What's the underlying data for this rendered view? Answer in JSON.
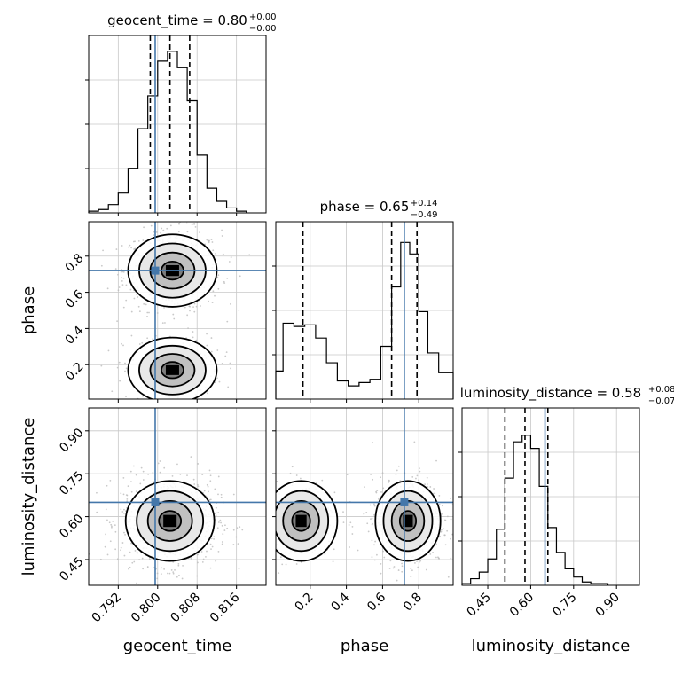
{
  "chart_data": {
    "type": "corner",
    "parameters": [
      {
        "name": "geocent_time",
        "xlabel": "geocent_time",
        "title_prefix": "geocent_time = 0.80",
        "title_sup": "+0.00",
        "title_sub": "−0.00",
        "ticks": [
          "0.792",
          "0.800",
          "0.808",
          "0.816"
        ],
        "range": [
          0.786,
          0.822
        ],
        "truth": 0.7995,
        "quantiles": [
          0.7985,
          0.8025,
          0.8065
        ],
        "hist_bins": [
          0.786,
          0.788,
          0.79,
          0.792,
          0.794,
          0.796,
          0.798,
          0.8,
          0.802,
          0.804,
          0.806,
          0.808,
          0.81,
          0.812,
          0.814,
          0.816,
          0.818
        ],
        "hist_counts": [
          0.01,
          0.02,
          0.05,
          0.12,
          0.27,
          0.51,
          0.71,
          0.92,
          0.98,
          0.88,
          0.68,
          0.35,
          0.15,
          0.07,
          0.03,
          0.01
        ]
      },
      {
        "name": "phase",
        "xlabel": "phase",
        "ylabel": "phase",
        "title_prefix": "phase = 0.65",
        "title_sup": "+0.14",
        "title_sub": "−0.49",
        "ticks": [
          "0.2",
          "0.4",
          "0.6",
          "0.8"
        ],
        "range": [
          0.01,
          0.99
        ],
        "truth": 0.72,
        "quantiles": [
          0.16,
          0.65,
          0.79
        ],
        "hist_bins": [
          0.01,
          0.05,
          0.11,
          0.17,
          0.23,
          0.29,
          0.35,
          0.41,
          0.47,
          0.53,
          0.59,
          0.65,
          0.7,
          0.75,
          0.8,
          0.85,
          0.91,
          0.99
        ],
        "hist_counts": [
          0.17,
          0.46,
          0.44,
          0.45,
          0.37,
          0.22,
          0.11,
          0.08,
          0.1,
          0.12,
          0.32,
          0.68,
          0.95,
          0.88,
          0.53,
          0.28,
          0.16
        ]
      },
      {
        "name": "luminosity_distance",
        "xlabel": "luminosity_distance",
        "ylabel": "luminosity_distance",
        "title_prefix": "luminosity_distance = 0.58",
        "title_sup": "+0.08",
        "title_sub": "−0.07",
        "ticks": [
          "0.45",
          "0.60",
          "0.75",
          "0.90"
        ],
        "range": [
          0.36,
          0.98
        ],
        "truth": 0.65,
        "quantiles": [
          0.51,
          0.58,
          0.66
        ],
        "hist_bins": [
          0.36,
          0.39,
          0.42,
          0.45,
          0.48,
          0.51,
          0.54,
          0.57,
          0.6,
          0.63,
          0.66,
          0.69,
          0.72,
          0.75,
          0.78,
          0.81,
          0.84,
          0.87
        ],
        "hist_counts": [
          0.01,
          0.04,
          0.08,
          0.16,
          0.34,
          0.65,
          0.87,
          0.91,
          0.83,
          0.6,
          0.35,
          0.2,
          0.1,
          0.05,
          0.02,
          0.01,
          0.01
        ]
      }
    ],
    "pair_plots": [
      {
        "x": "geocent_time",
        "y": "phase",
        "truth": [
          0.7995,
          0.72
        ],
        "modes": [
          {
            "x": 0.803,
            "y": 0.72,
            "sx": 0.0045,
            "sy": 0.1,
            "weight": 0.72
          },
          {
            "x": 0.803,
            "y": 0.17,
            "sx": 0.0045,
            "sy": 0.09,
            "weight": 0.28
          }
        ]
      },
      {
        "x": "geocent_time",
        "y": "luminosity_distance",
        "truth": [
          0.7995,
          0.65
        ],
        "modes": [
          {
            "x": 0.8025,
            "y": 0.585,
            "sx": 0.0045,
            "sy": 0.07,
            "weight": 1.0
          }
        ]
      },
      {
        "x": "phase",
        "y": "luminosity_distance",
        "truth": [
          0.72,
          0.65
        ],
        "modes": [
          {
            "x": 0.74,
            "y": 0.585,
            "sx": 0.09,
            "sy": 0.07,
            "weight": 0.72
          },
          {
            "x": 0.15,
            "y": 0.585,
            "sx": 0.1,
            "sy": 0.07,
            "weight": 0.28
          }
        ]
      }
    ],
    "colors": {
      "truth": "#4477aa",
      "hist": "#000000",
      "points": "#bbbbbb",
      "grid": "#c8c8c8"
    },
    "grid": true
  }
}
